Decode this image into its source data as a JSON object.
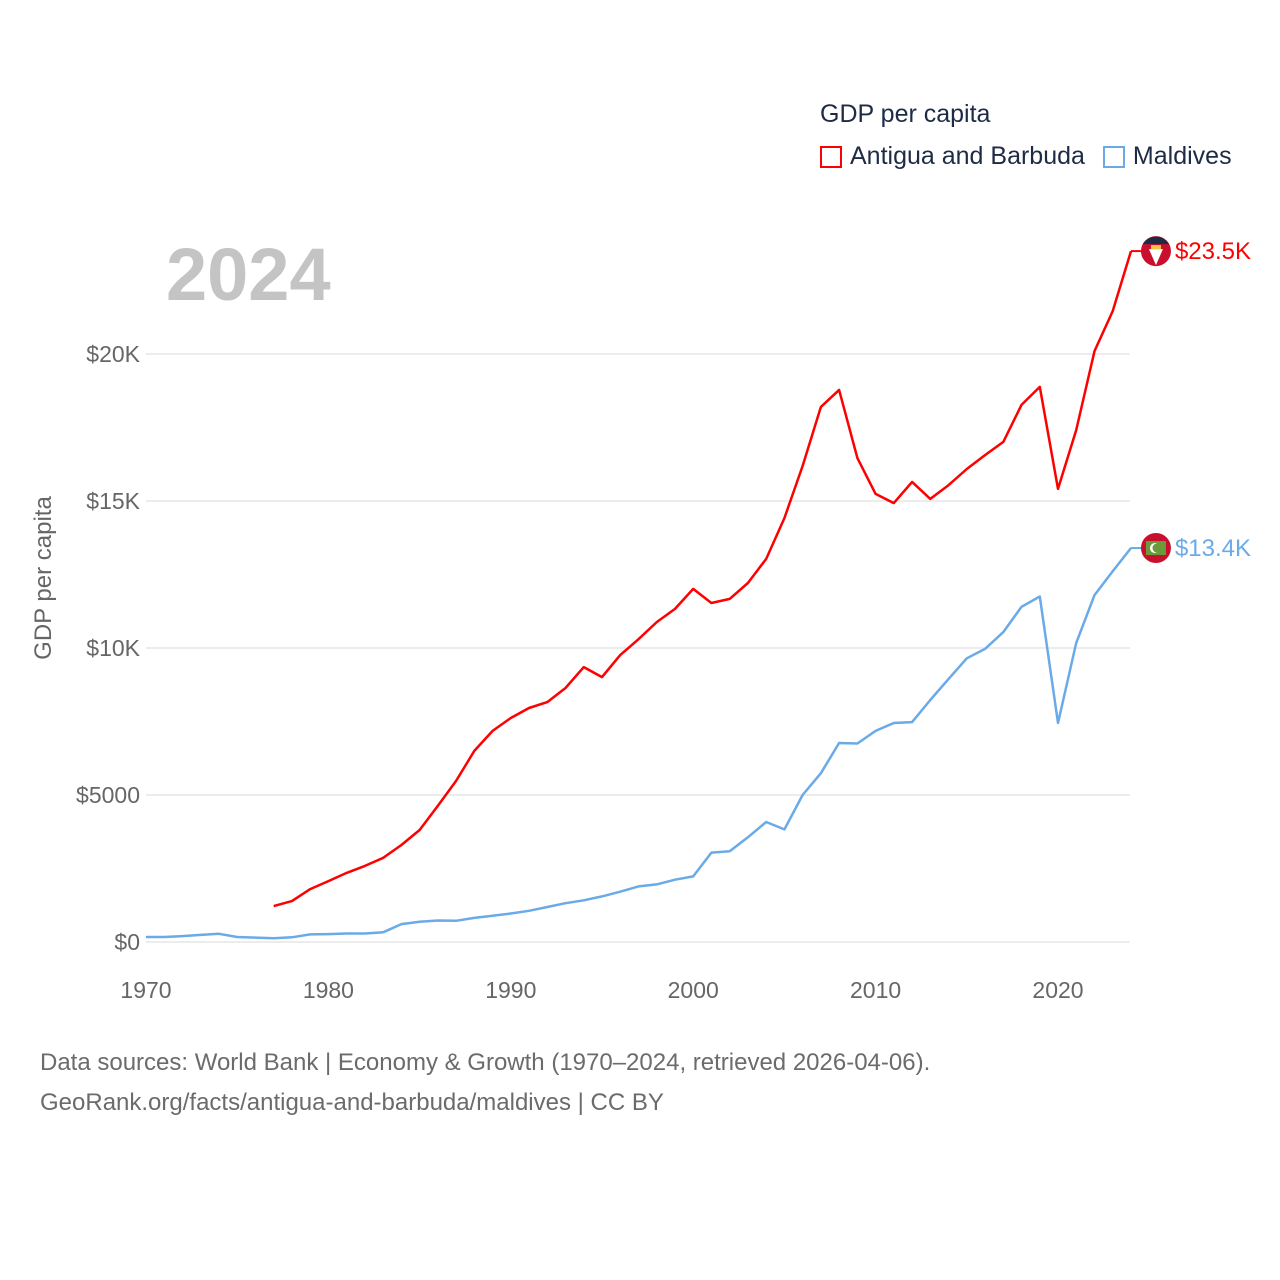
{
  "chart_data": {
    "type": "line",
    "title": "",
    "year_overlay": "2024",
    "xlabel": "",
    "ylabel": "GDP per capita",
    "xlim": [
      1970,
      2024
    ],
    "ylim": [
      0,
      24000
    ],
    "x_ticks": [
      1970,
      1980,
      1990,
      2000,
      2010,
      2020
    ],
    "x_tick_labels": [
      "1970",
      "1980",
      "1990",
      "2000",
      "2010",
      "2020"
    ],
    "y_ticks": [
      0,
      5000,
      10000,
      15000,
      20000
    ],
    "y_tick_labels": [
      "$0",
      "$5000",
      "$10K",
      "$15K",
      "$20K"
    ],
    "grid": true,
    "legend": {
      "title": "GDP per capita",
      "placement": "top-right"
    },
    "series": [
      {
        "name": "Antigua and Barbuda",
        "color": "#ff0000",
        "end_label": "$23.5K",
        "flag_icon": "antigua-and-barbuda-flag",
        "x": [
          1977,
          1978,
          1979,
          1980,
          1981,
          1982,
          1983,
          1984,
          1985,
          1986,
          1987,
          1988,
          1989,
          1990,
          1991,
          1992,
          1993,
          1994,
          1995,
          1996,
          1997,
          1998,
          1999,
          2000,
          2001,
          2002,
          2003,
          2004,
          2005,
          2006,
          2007,
          2008,
          2009,
          2010,
          2011,
          2012,
          2013,
          2014,
          2015,
          2016,
          2017,
          2018,
          2019,
          2020,
          2021,
          2022,
          2023,
          2024
        ],
        "values": [
          1220,
          1390,
          1800,
          2070,
          2350,
          2590,
          2860,
          3300,
          3810,
          4630,
          5480,
          6500,
          7180,
          7620,
          7960,
          8160,
          8640,
          9350,
          9010,
          9760,
          10300,
          10880,
          11330,
          12010,
          11530,
          11670,
          12210,
          13030,
          14420,
          16190,
          18200,
          18780,
          16460,
          15240,
          14930,
          15650,
          15070,
          15540,
          16090,
          16560,
          17010,
          18270,
          18880,
          15410,
          17410,
          20100,
          21460,
          23500
        ]
      },
      {
        "name": "Maldives",
        "color": "#6aaae8",
        "end_label": "$13.4K",
        "flag_icon": "maldives-flag",
        "x": [
          1970,
          1971,
          1972,
          1973,
          1974,
          1975,
          1976,
          1977,
          1978,
          1979,
          1980,
          1981,
          1982,
          1983,
          1984,
          1985,
          1986,
          1987,
          1988,
          1989,
          1990,
          1991,
          1992,
          1993,
          1994,
          1995,
          1996,
          1997,
          1998,
          1999,
          2000,
          2001,
          2002,
          2003,
          2004,
          2005,
          2006,
          2007,
          2008,
          2009,
          2010,
          2011,
          2012,
          2013,
          2014,
          2015,
          2016,
          2017,
          2018,
          2019,
          2020,
          2021,
          2022,
          2023,
          2024
        ],
        "values": [
          170,
          170,
          200,
          240,
          280,
          170,
          150,
          130,
          160,
          260,
          270,
          290,
          290,
          330,
          610,
          690,
          730,
          720,
          820,
          890,
          970,
          1060,
          1190,
          1320,
          1420,
          1550,
          1710,
          1890,
          1960,
          2120,
          2230,
          3040,
          3090,
          3560,
          4080,
          3830,
          5000,
          5740,
          6770,
          6750,
          7180,
          7450,
          7480,
          8230,
          8950,
          9650,
          9970,
          10540,
          11400,
          11750,
          7450,
          10170,
          11800,
          12610,
          13400
        ]
      }
    ]
  },
  "footer": {
    "line1": "Data sources: World Bank | Economy & Growth (1970–2024, retrieved 2026-04-06).",
    "line2": "GeoRank.org/facts/antigua-and-barbuda/maldives | CC BY"
  }
}
